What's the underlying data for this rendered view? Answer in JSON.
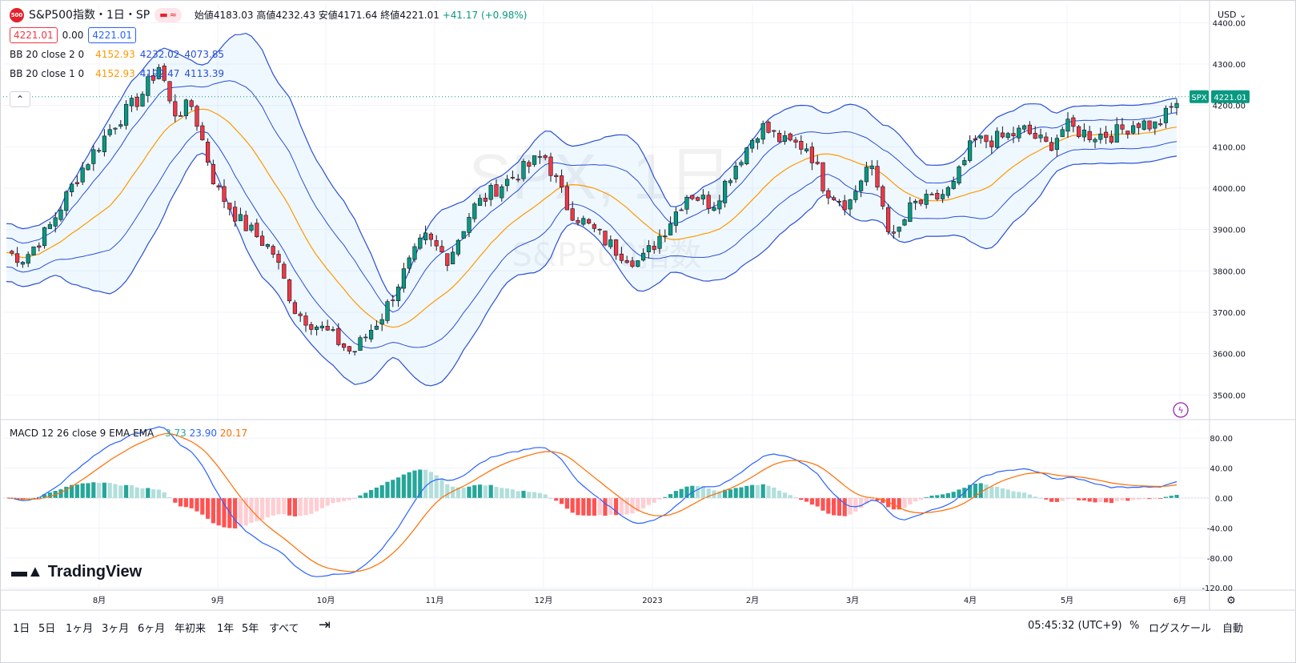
{
  "header": {
    "logo_text": "500",
    "title": "S&P500指数・1日・SP",
    "open_label": "始値",
    "open": "4183.03",
    "high_label": "高値",
    "high": "4232.43",
    "low_label": "安値",
    "low": "4171.64",
    "close_label": "終値",
    "close": "4221.01",
    "change": "+41.17 (+0.98%)",
    "sell_price": "4221.01",
    "spread": "0.00",
    "buy_price": "4221.01"
  },
  "indicators": {
    "bb2": {
      "label": "BB 20 close 2 0",
      "basis": "4152.93",
      "upper": "4232.02",
      "lower": "4073.85"
    },
    "bb1": {
      "label": "BB 20 close 1 0",
      "basis": "4152.93",
      "upper": "4192.47",
      "lower": "4113.39"
    },
    "macd": {
      "label": "MACD 12 26 close 9 EMA EMA",
      "hist": "3.73",
      "macd": "23.90",
      "signal": "20.17"
    }
  },
  "watermark": {
    "big": "SPX, 1日",
    "small": "S&P500指数"
  },
  "price_axis": {
    "currency": "USD",
    "ticks": [
      "4400.00",
      "4300.00",
      "4200.00",
      "4100.00",
      "4000.00",
      "3900.00",
      "3800.00",
      "3700.00",
      "3600.00",
      "3500.00"
    ],
    "symbol_tag": "SPX",
    "last_price": "4221.01"
  },
  "macd_axis": {
    "ticks": [
      "80.00",
      "40.00",
      "0.00",
      "-40.00",
      "-80.00",
      "-120.00"
    ]
  },
  "time_axis": {
    "ticks": [
      "8月",
      "9月",
      "10月",
      "11月",
      "12月",
      "2023",
      "2月",
      "3月",
      "4月",
      "5月",
      "6月"
    ]
  },
  "branding": {
    "name": "TradingView"
  },
  "bottom_bar": {
    "ranges": [
      "1日",
      "5日",
      "1ヶ月",
      "3ヶ月",
      "6ヶ月",
      "年初来",
      "1年",
      "5年",
      "すべて"
    ],
    "clock": "05:45:32 (UTC+9)",
    "percent": "%",
    "log": "ログスケール",
    "auto": "自動"
  },
  "colors": {
    "up": "#089981",
    "down": "#f23645",
    "bb_band": "#2a4fd6",
    "bb_basis": "#ff9800",
    "macd": "#2962ff",
    "signal": "#ff6d00"
  },
  "chart_data": {
    "type": "line",
    "title": "S&P500指数・1日・SP",
    "x_label": "",
    "y_label": "",
    "x": [
      "8月",
      "9月",
      "10月",
      "11月",
      "12月",
      "2023",
      "2月",
      "3月",
      "4月",
      "5月",
      "6月"
    ],
    "series": [
      {
        "name": "",
        "values": [
          4100,
          3950,
          3650,
          3850,
          4000,
          3850,
          4150,
          3950,
          4100,
          4150,
          4221
        ]
      }
    ],
    "ylim": [
      3450,
      4420
    ]
  }
}
